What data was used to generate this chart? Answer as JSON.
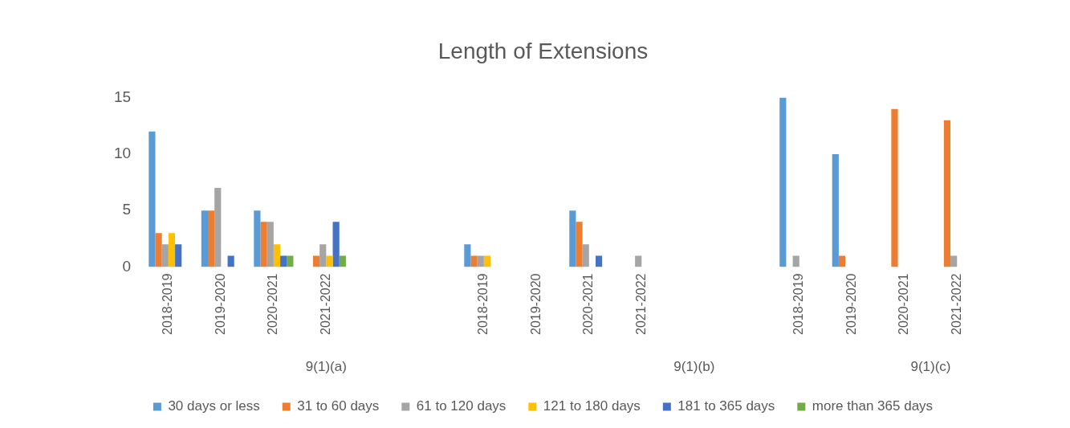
{
  "chart_data": {
    "type": "bar",
    "title": "Length of Extensions",
    "categories": [
      "2018-2019",
      "2019-2020",
      "2020-2021",
      "2021-2022",
      null,
      null,
      "2018-2019",
      "2019-2020",
      "2020-2021",
      "2021-2022",
      null,
      null,
      "2018-2019",
      "2019-2020",
      "2020-2021",
      "2021-2022"
    ],
    "series": [
      {
        "name": "30 days or less",
        "color": "#5b9bd5",
        "values": [
          12,
          5,
          5,
          0,
          null,
          null,
          2,
          0,
          5,
          0,
          null,
          null,
          15,
          10,
          0,
          0
        ]
      },
      {
        "name": "31 to 60 days",
        "color": "#ed7d31",
        "values": [
          3,
          5,
          4,
          1,
          null,
          null,
          1,
          0,
          4,
          0,
          null,
          null,
          0,
          1,
          14,
          13
        ]
      },
      {
        "name": "61 to 120 days",
        "color": "#a5a5a5",
        "values": [
          2,
          7,
          4,
          2,
          null,
          null,
          1,
          0,
          2,
          1,
          null,
          null,
          1,
          0,
          0,
          1
        ]
      },
      {
        "name": "121 to 180 days",
        "color": "#ffc000",
        "values": [
          3,
          0,
          2,
          1,
          null,
          null,
          1,
          0,
          0,
          0,
          null,
          null,
          0,
          0,
          0,
          0
        ]
      },
      {
        "name": "181 to 365 days",
        "color": "#4472c4",
        "values": [
          2,
          1,
          1,
          4,
          null,
          null,
          0,
          0,
          1,
          0,
          null,
          null,
          0,
          0,
          0,
          0
        ]
      },
      {
        "name": "more than 365 days",
        "color": "#70ad47",
        "values": [
          0,
          0,
          1,
          1,
          null,
          null,
          0,
          0,
          0,
          0,
          null,
          null,
          0,
          0,
          0,
          0
        ]
      }
    ],
    "annotations": [
      "9(1)(a)",
      "9(1)(b)",
      "9(1)(c)"
    ],
    "ylim": [
      0,
      15
    ],
    "yticks": [
      0,
      5,
      10,
      15
    ],
    "grid": false,
    "legend": "bottom"
  }
}
